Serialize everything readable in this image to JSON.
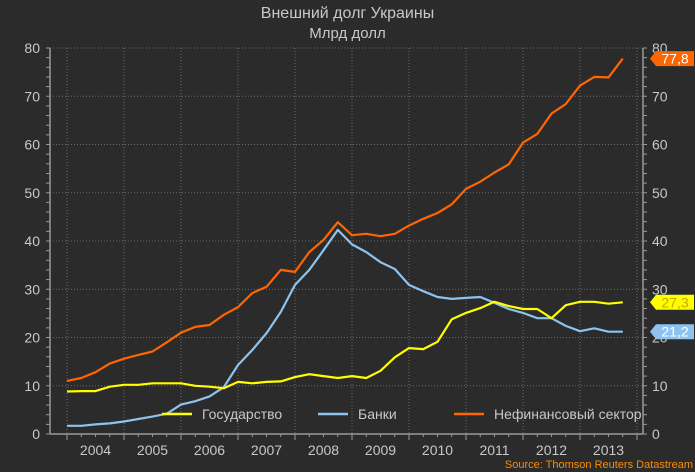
{
  "chart_data": {
    "type": "line",
    "title": "Внешний долг Украины",
    "subtitle": "Млрд долл",
    "xlabel": "",
    "ylabel": "",
    "ylim": [
      0,
      80
    ],
    "yticks": [
      0,
      10,
      20,
      30,
      40,
      50,
      60,
      70,
      80
    ],
    "xtick_labels": [
      "2004",
      "2005",
      "2006",
      "2007",
      "2008",
      "2009",
      "2010",
      "2011",
      "2012",
      "2013"
    ],
    "frequency": "quarterly",
    "x_start": "2004 Q1",
    "x_end": "2013 Q4",
    "grid": true,
    "legend_position": "bottom-inside",
    "series": [
      {
        "name": "Государство",
        "color": "#ffff00",
        "last_value_label": "27,3",
        "values": [
          8.8,
          8.9,
          8.9,
          9.8,
          10.2,
          10.2,
          10.5,
          10.5,
          10.5,
          10.0,
          9.8,
          9.5,
          10.8,
          10.5,
          10.8,
          10.9,
          11.8,
          12.4,
          12.0,
          11.6,
          12.0,
          11.6,
          13.1,
          15.9,
          17.8,
          17.6,
          19.1,
          23.8,
          25.1,
          26.1,
          27.4,
          26.5,
          25.9,
          25.9,
          24.0,
          26.7,
          27.4,
          27.4,
          27.0,
          27.3
        ]
      },
      {
        "name": "Банки",
        "color": "#8ec3f0",
        "last_value_label": "21,2",
        "values": [
          1.7,
          1.7,
          2.0,
          2.2,
          2.6,
          3.1,
          3.6,
          4.2,
          6.1,
          6.8,
          7.8,
          9.7,
          14.3,
          17.4,
          20.9,
          25.3,
          30.9,
          34.0,
          38.1,
          42.3,
          39.3,
          37.7,
          35.6,
          34.2,
          30.9,
          29.6,
          28.4,
          28.0,
          28.2,
          28.4,
          27.2,
          25.9,
          25.1,
          24.0,
          24.0,
          22.4,
          21.3,
          21.9,
          21.2,
          21.2
        ]
      },
      {
        "name": "Нефинансовый сектор",
        "color": "#ff6600",
        "last_value_label": "77,8",
        "values": [
          11.0,
          11.6,
          12.8,
          14.6,
          15.6,
          16.4,
          17.1,
          19.0,
          21.0,
          22.2,
          22.6,
          24.7,
          26.3,
          29.2,
          30.5,
          34.0,
          33.6,
          37.7,
          40.2,
          43.9,
          41.2,
          41.5,
          41.0,
          41.5,
          43.2,
          44.6,
          45.8,
          47.6,
          50.8,
          52.3,
          54.2,
          55.9,
          60.4,
          62.2,
          66.4,
          68.4,
          72.2,
          74.0,
          73.9,
          77.8
        ]
      }
    ],
    "source": "Source: Thomson Reuters Datastream"
  }
}
